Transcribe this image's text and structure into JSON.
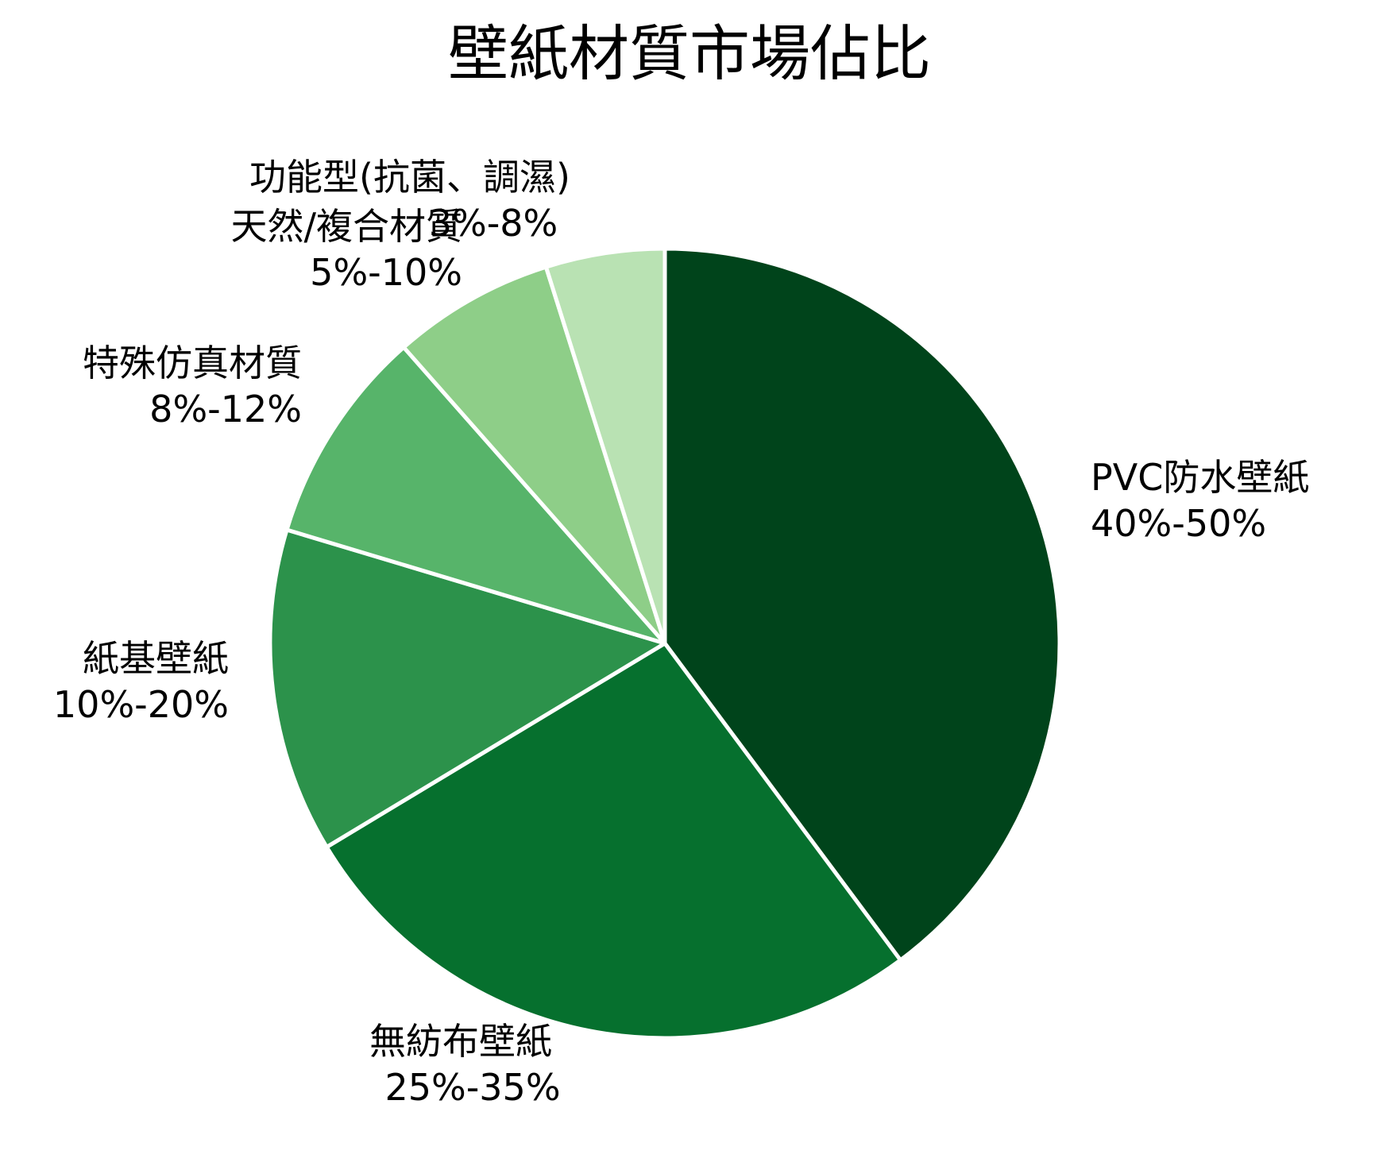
{
  "chart_data": {
    "type": "pie",
    "title": "壁紙材質市場佔比",
    "categories": [
      "PVC防水壁紙",
      "無紡布壁紙",
      "紙基壁紙",
      "特殊仿真材質",
      "天然/複合材質",
      "功能型(抗菌、調濕)"
    ],
    "ranges": [
      "40%-50%",
      "25%-35%",
      "10%-20%",
      "8%-12%",
      "5%-10%",
      "3%-8%"
    ],
    "values": [
      45,
      30,
      15,
      10,
      7.5,
      5.5
    ],
    "colors": [
      "#00441b",
      "#06702e",
      "#2c924b",
      "#57b46a",
      "#8ece88",
      "#b9e2b3"
    ],
    "start_angle": "12 o'clock, clockwise",
    "legend": "none (labels outside slices)"
  },
  "labels": [
    {
      "name": "PVC防水壁紙",
      "range": "40%-50%"
    },
    {
      "name": "無紡布壁紙",
      "range": "25%-35%"
    },
    {
      "name": "紙基壁紙",
      "range": "10%-20%"
    },
    {
      "name": "特殊仿真材質",
      "range": "8%-12%"
    },
    {
      "name": "天然/複合材質",
      "range": "5%-10%"
    },
    {
      "name": "功能型(抗菌、調濕)",
      "range": "3%-8%"
    }
  ]
}
